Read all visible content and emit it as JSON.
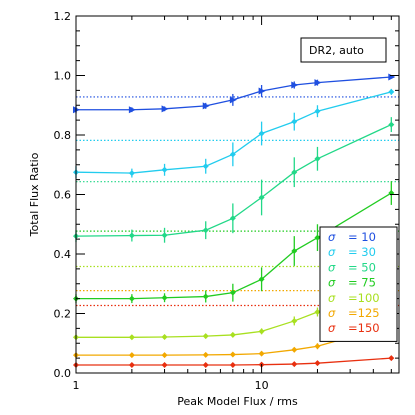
{
  "chart_data": {
    "type": "line",
    "title": "",
    "xlabel": "Peak Model Flux / rms",
    "ylabel": "Total Flux Ratio",
    "x_scale": "log",
    "xlim": [
      1,
      55
    ],
    "ylim": [
      0.0,
      1.2
    ],
    "x_tick_labels": [
      "1",
      "10"
    ],
    "y_tick_labels": [
      "0.0",
      "0.2",
      "0.4",
      "0.6",
      "0.8",
      "1.0",
      "1.2"
    ],
    "annotation": "DR2, auto",
    "legend_position": "bottom-right",
    "x": [
      1,
      2,
      3,
      5,
      7,
      10,
      15,
      20,
      50
    ],
    "series": [
      {
        "name": "σ  = 10",
        "symbol": "σ",
        "label_text": "= 10",
        "color": "#1f4fe0",
        "values": [
          0.885,
          0.885,
          0.888,
          0.898,
          0.918,
          0.948,
          0.968,
          0.976,
          0.995
        ],
        "errors": [
          0.012,
          0.008,
          0.008,
          0.01,
          0.02,
          0.02,
          0.012,
          0.01,
          0.005
        ],
        "reference": 0.928,
        "marker": "triangle-right"
      },
      {
        "name": "σ  = 30",
        "symbol": "σ",
        "label_text": "= 30",
        "color": "#22ccee",
        "values": [
          0.675,
          0.672,
          0.683,
          0.695,
          0.735,
          0.805,
          0.845,
          0.88,
          0.945
        ],
        "errors": [
          0.02,
          0.015,
          0.02,
          0.025,
          0.04,
          0.04,
          0.03,
          0.02,
          0.01
        ],
        "reference": 0.782,
        "marker": "diamond"
      },
      {
        "name": "σ  = 50",
        "symbol": "σ",
        "label_text": "= 50",
        "color": "#22d888",
        "values": [
          0.46,
          0.462,
          0.463,
          0.48,
          0.52,
          0.59,
          0.675,
          0.72,
          0.835
        ],
        "errors": [
          0.02,
          0.02,
          0.025,
          0.03,
          0.05,
          0.06,
          0.05,
          0.04,
          0.025
        ],
        "reference": 0.643,
        "marker": "diamond"
      },
      {
        "name": "σ  = 75",
        "symbol": "σ",
        "label_text": "= 75",
        "color": "#22cc22",
        "values": [
          0.25,
          0.25,
          0.253,
          0.257,
          0.27,
          0.315,
          0.41,
          0.455,
          0.605
        ],
        "errors": [
          0.015,
          0.015,
          0.015,
          0.02,
          0.03,
          0.04,
          0.05,
          0.045,
          0.04
        ],
        "reference": 0.477,
        "marker": "diamond"
      },
      {
        "name": "σ  =100",
        "symbol": "σ",
        "label_text": "=100",
        "color": "#a8e020",
        "values": [
          0.12,
          0.12,
          0.121,
          0.124,
          0.128,
          0.14,
          0.175,
          0.205,
          0.315
        ],
        "errors": [
          0.005,
          0.005,
          0.005,
          0.005,
          0.008,
          0.01,
          0.015,
          0.015,
          0.025
        ],
        "reference": 0.358,
        "marker": "diamond"
      },
      {
        "name": "σ  =125",
        "symbol": "σ",
        "label_text": "=125",
        "color": "#f2a800",
        "values": [
          0.06,
          0.06,
          0.06,
          0.061,
          0.062,
          0.065,
          0.078,
          0.09,
          0.16
        ],
        "errors": [
          0.003,
          0.003,
          0.003,
          0.003,
          0.004,
          0.005,
          0.008,
          0.01,
          0.015
        ],
        "reference": 0.277,
        "marker": "diamond"
      },
      {
        "name": "σ  =150",
        "symbol": "σ",
        "label_text": "=150",
        "color": "#e83010",
        "values": [
          0.027,
          0.027,
          0.027,
          0.027,
          0.027,
          0.028,
          0.03,
          0.033,
          0.05
        ],
        "errors": [
          0.002,
          0.002,
          0.002,
          0.002,
          0.002,
          0.002,
          0.003,
          0.003,
          0.005
        ],
        "reference": 0.227,
        "marker": "diamond"
      }
    ]
  }
}
